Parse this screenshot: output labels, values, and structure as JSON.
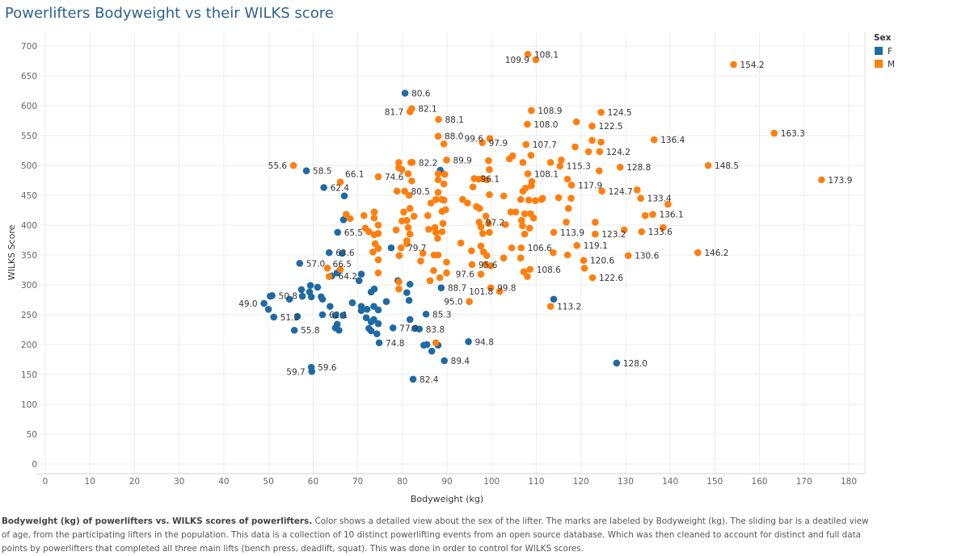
{
  "title": "Powerlifters Bodyweight vs their WILKS score",
  "caption": {
    "bold": "Bodyweight (kg) of powerlifters vs. WILKS scores of powerlifters.",
    "rest": " Color shows a detailed view about the sex of the lifter.  The marks are labeled by  Bodyweight (kg).  The sliding bar is a deatiled view of age, from the participating lifters in the population. This data is a collection of 10 distinct powerlifting events from an open source database. Which was then cleaned to account for distinct and full data points by powerlifters that completed all three main lifts (bench press, deadlift, squat). This was done in order to control for WILKS scores."
  },
  "chart_data": {
    "type": "scatter",
    "title": "Powerlifters Bodyweight vs their WILKS score",
    "xlabel": "Bodyweight (kg)",
    "ylabel": "WILKS Score",
    "xlim": [
      0,
      180
    ],
    "ylim": [
      0,
      700
    ],
    "xticks": [
      0,
      10,
      20,
      30,
      40,
      50,
      60,
      70,
      80,
      90,
      100,
      110,
      120,
      130,
      140,
      150,
      160,
      170,
      180
    ],
    "yticks": [
      0,
      50,
      100,
      150,
      200,
      250,
      300,
      350,
      400,
      450,
      500,
      550,
      600,
      650,
      700
    ],
    "grid": true,
    "legend": {
      "title": "Sex",
      "placement": "top-right"
    },
    "series": [
      {
        "name": "F",
        "color": "#1f6aa5",
        "points": [
          [
            80.6,
            621,
            "80.6"
          ],
          [
            58.5,
            491,
            "58.5"
          ],
          [
            62.4,
            463,
            "62.4"
          ],
          [
            65.5,
            388,
            "65.5"
          ],
          [
            63.6,
            354,
            "63.6"
          ],
          [
            66.5,
            353,
            "66.5"
          ],
          [
            57.0,
            336,
            "57.0"
          ],
          [
            50.8,
            282,
            "50.8"
          ],
          [
            49.0,
            269,
            "49.0"
          ],
          [
            51.2,
            246,
            "51.2"
          ],
          [
            55.8,
            224,
            "55.8"
          ],
          [
            62.1,
            250,
            "62.1"
          ],
          [
            59.6,
            162,
            "59.6"
          ],
          [
            59.7,
            155,
            "59.7"
          ],
          [
            74.8,
            203,
            "74.8"
          ],
          [
            77.9,
            228,
            "77.9"
          ],
          [
            83.8,
            226,
            "83.8"
          ],
          [
            85.3,
            251,
            "85.3"
          ],
          [
            82.4,
            142,
            "82.4"
          ],
          [
            89.4,
            173,
            "89.4"
          ],
          [
            88.7,
            295,
            "88.7"
          ],
          [
            94.8,
            205,
            "94.8"
          ],
          [
            128.0,
            169,
            "128.0"
          ],
          [
            64.2,
            315,
            "64.2"
          ],
          [
            50.4,
            281
          ],
          [
            50,
            259
          ],
          [
            54.7,
            276
          ],
          [
            56.5,
            247
          ],
          [
            57.4,
            292
          ],
          [
            57.6,
            281
          ],
          [
            59.4,
            299
          ],
          [
            59.2,
            288
          ],
          [
            59.6,
            280
          ],
          [
            61,
            296
          ],
          [
            61.8,
            280
          ],
          [
            62.1,
            276
          ],
          [
            63.8,
            264
          ],
          [
            65,
            249
          ],
          [
            66.7,
            249
          ],
          [
            65.4,
            234
          ],
          [
            65,
            228
          ],
          [
            65.8,
            224
          ],
          [
            65.4,
            320
          ],
          [
            70.8,
            318
          ],
          [
            70.3,
            307
          ],
          [
            68.8,
            270
          ],
          [
            70.8,
            264
          ],
          [
            70.8,
            257
          ],
          [
            72.1,
            259
          ],
          [
            71.9,
            245
          ],
          [
            73,
            288
          ],
          [
            73.7,
            293
          ],
          [
            73.6,
            264
          ],
          [
            74.6,
            258
          ],
          [
            73.6,
            242
          ],
          [
            73,
            238
          ],
          [
            74.6,
            235
          ],
          [
            72.5,
            227
          ],
          [
            73,
            223
          ],
          [
            74.3,
            218
          ],
          [
            76.4,
            272
          ],
          [
            77.5,
            362
          ],
          [
            79,
            307
          ],
          [
            81.7,
            301
          ],
          [
            81,
            287
          ],
          [
            81.5,
            274
          ],
          [
            81.7,
            242
          ],
          [
            82.8,
            227
          ],
          [
            84.8,
            199
          ],
          [
            85.5,
            200
          ],
          [
            86.6,
            189
          ],
          [
            88,
            199
          ],
          [
            67,
            449
          ],
          [
            66.8,
            409
          ],
          [
            88.5,
            492
          ],
          [
            113.9,
            276
          ]
        ]
      },
      {
        "name": "M",
        "color": "#ff7f0e",
        "points": [
          [
            108.1,
            686,
            "108.1"
          ],
          [
            109.9,
            677,
            "109.9"
          ],
          [
            154.2,
            669,
            "154.2"
          ],
          [
            82.1,
            595,
            "82.1"
          ],
          [
            81.7,
            590,
            "81.7"
          ],
          [
            88.1,
            577,
            "88.1"
          ],
          [
            108.9,
            592,
            "108.9"
          ],
          [
            108.0,
            569,
            "108.0"
          ],
          [
            124.5,
            589,
            "124.5"
          ],
          [
            122.5,
            566,
            "122.5"
          ],
          [
            88.0,
            549,
            "88.0"
          ],
          [
            97.9,
            538,
            "97.9"
          ],
          [
            99.6,
            545,
            "99.6"
          ],
          [
            107.7,
            535,
            "107.7"
          ],
          [
            136.4,
            543,
            "136.4"
          ],
          [
            163.3,
            554,
            "163.3"
          ],
          [
            124.2,
            523,
            "124.2"
          ],
          [
            82.2,
            505,
            "82.2"
          ],
          [
            89.9,
            509,
            "89.9"
          ],
          [
            55.6,
            500,
            "55.6"
          ],
          [
            115.3,
            499,
            "115.3"
          ],
          [
            148.5,
            500,
            "148.5"
          ],
          [
            173.9,
            476,
            "173.9"
          ],
          [
            96.1,
            478,
            "96.1"
          ],
          [
            108.1,
            486,
            "108.1"
          ],
          [
            128.8,
            497,
            "128.8"
          ],
          [
            66.1,
            472,
            "66.1"
          ],
          [
            74.6,
            481,
            "74.6"
          ],
          [
            117.9,
            467,
            "117.9"
          ],
          [
            80.5,
            457,
            "80.5"
          ],
          [
            124.7,
            457,
            "124.7"
          ],
          [
            133.4,
            445,
            "133.4"
          ],
          [
            136.1,
            418,
            "136.1"
          ],
          [
            97.2,
            405,
            "97.2"
          ],
          [
            113.9,
            388,
            "113.9"
          ],
          [
            123.2,
            385,
            "123.2"
          ],
          [
            133.6,
            389,
            "133.6"
          ],
          [
            106.6,
            362,
            "106.6"
          ],
          [
            119.1,
            366,
            "119.1"
          ],
          [
            146.2,
            354,
            "146.2"
          ],
          [
            120.6,
            341,
            "120.6"
          ],
          [
            130.6,
            349,
            "130.6"
          ],
          [
            79.7,
            362,
            "79.7"
          ],
          [
            95.6,
            334,
            "95.6"
          ],
          [
            97.6,
            318,
            "97.6"
          ],
          [
            108.6,
            326,
            "108.6"
          ],
          [
            122.6,
            312,
            "122.6"
          ],
          [
            99.8,
            295,
            "99.8"
          ],
          [
            101.8,
            289,
            "101.8"
          ],
          [
            95.0,
            272,
            "95.0"
          ],
          [
            113.2,
            264,
            "113.2"
          ],
          [
            79.2,
            505
          ],
          [
            81.9,
            505
          ],
          [
            79.2,
            496
          ],
          [
            79.9,
            493
          ],
          [
            81.3,
            486
          ],
          [
            82.1,
            474
          ],
          [
            81.5,
            450
          ],
          [
            88,
            486
          ],
          [
            88,
            476
          ],
          [
            89.3,
            469
          ],
          [
            88,
            455
          ],
          [
            87.5,
            443
          ],
          [
            88.8,
            443
          ],
          [
            86.4,
            437
          ],
          [
            89.3,
            442
          ],
          [
            89.5,
            485
          ],
          [
            81.7,
            428
          ],
          [
            80.3,
            422
          ],
          [
            82.6,
            415
          ],
          [
            79.9,
            407
          ],
          [
            81,
            408
          ],
          [
            81.3,
            396
          ],
          [
            81.7,
            385
          ],
          [
            81,
            374
          ],
          [
            81,
            369
          ],
          [
            78.6,
            392
          ],
          [
            85.7,
            416
          ],
          [
            85.9,
            393
          ],
          [
            87.3,
            396
          ],
          [
            87.5,
            388
          ],
          [
            88.9,
            389
          ],
          [
            89.1,
            403
          ],
          [
            88.9,
            423
          ],
          [
            89.7,
            426
          ],
          [
            87.9,
            378
          ],
          [
            93.1,
            370
          ],
          [
            95.5,
            357
          ],
          [
            97.6,
            365
          ],
          [
            98.2,
            355
          ],
          [
            98.9,
            349
          ],
          [
            93.5,
            443
          ],
          [
            94.6,
            437
          ],
          [
            96.6,
            431
          ],
          [
            97.3,
            428
          ],
          [
            98.7,
            415
          ],
          [
            97.6,
            397
          ],
          [
            98,
            386
          ],
          [
            99.5,
            388
          ],
          [
            99.3,
            403
          ],
          [
            99.5,
            451
          ],
          [
            95.8,
            464
          ],
          [
            97.1,
            477
          ],
          [
            98,
            478
          ],
          [
            98.9,
            476
          ],
          [
            99.3,
            508
          ],
          [
            99.5,
            493
          ],
          [
            89.3,
            536
          ],
          [
            102.7,
            449
          ],
          [
            103.1,
            401
          ],
          [
            104.5,
            362
          ],
          [
            102.7,
            345
          ],
          [
            106.5,
            345
          ],
          [
            107.2,
            322
          ],
          [
            108,
            314
          ],
          [
            104,
            511
          ],
          [
            104.7,
            516
          ],
          [
            107,
            505
          ],
          [
            108.8,
            517
          ],
          [
            113.2,
            505
          ],
          [
            115.6,
            509
          ],
          [
            109,
            473
          ],
          [
            108.9,
            466
          ],
          [
            107.6,
            462
          ],
          [
            107,
            457
          ],
          [
            106.5,
            443
          ],
          [
            108.3,
            442
          ],
          [
            109.8,
            441
          ],
          [
            111.2,
            443
          ],
          [
            104.3,
            422
          ],
          [
            105.4,
            422
          ],
          [
            107.4,
            419
          ],
          [
            108.7,
            419
          ],
          [
            109.4,
            412
          ],
          [
            106.7,
            408
          ],
          [
            106.9,
            399
          ],
          [
            108.5,
            395
          ],
          [
            107.4,
            385
          ],
          [
            113.8,
            354
          ],
          [
            119,
            573
          ],
          [
            122.5,
            542
          ],
          [
            124.5,
            539
          ],
          [
            118.7,
            531
          ],
          [
            121.7,
            523
          ],
          [
            124.1,
            491
          ],
          [
            117,
            477
          ],
          [
            132.6,
            459
          ],
          [
            139.5,
            435
          ],
          [
            134.4,
            416
          ],
          [
            138.4,
            396
          ],
          [
            129.7,
            392
          ],
          [
            111.4,
            445
          ],
          [
            115,
            446
          ],
          [
            117.8,
            445
          ],
          [
            117.2,
            428
          ],
          [
            116.7,
            405
          ],
          [
            123.2,
            405
          ],
          [
            117,
            350
          ],
          [
            120.8,
            328
          ],
          [
            67.4,
            418
          ],
          [
            68.3,
            411
          ],
          [
            71.4,
            416
          ],
          [
            73.7,
            422
          ],
          [
            73.7,
            412
          ],
          [
            74.6,
            400
          ],
          [
            71.7,
            395
          ],
          [
            72.5,
            389
          ],
          [
            73.7,
            384
          ],
          [
            74.6,
            386
          ],
          [
            73.9,
            369
          ],
          [
            73.4,
            355
          ],
          [
            74.6,
            361
          ],
          [
            74.6,
            342
          ],
          [
            74.6,
            320
          ],
          [
            79.3,
            349
          ],
          [
            63.2,
            328
          ],
          [
            66.1,
            326
          ],
          [
            63.6,
            314
          ],
          [
            84.1,
            340
          ],
          [
            84.6,
            353
          ],
          [
            87.1,
            350
          ],
          [
            88,
            350
          ],
          [
            89.9,
            338
          ],
          [
            87,
            324
          ],
          [
            89.9,
            320
          ],
          [
            88.4,
            312
          ],
          [
            86.2,
            307
          ],
          [
            79.2,
            305
          ],
          [
            79.2,
            293
          ],
          [
            87.5,
            203
          ],
          [
            98.6,
            334
          ],
          [
            99.8,
            332
          ],
          [
            78.8,
            457
          ]
        ]
      }
    ]
  }
}
